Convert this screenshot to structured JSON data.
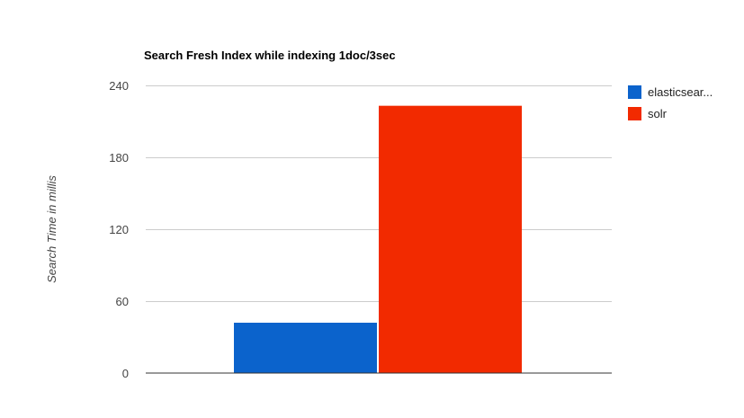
{
  "chart_data": {
    "type": "bar",
    "title": "Search Fresh Index while indexing 1doc/3sec",
    "xlabel": "",
    "ylabel": "Search Time in millis",
    "ylim": [
      0,
      240
    ],
    "yticks": [
      0,
      60,
      120,
      180,
      240
    ],
    "grid": true,
    "legend_position": "right",
    "categories": [
      ""
    ],
    "series": [
      {
        "name": "elasticsear...",
        "color": "#0b63cc",
        "values": [
          42
        ]
      },
      {
        "name": "solr",
        "color": "#f22a00",
        "values": [
          223
        ]
      }
    ]
  }
}
